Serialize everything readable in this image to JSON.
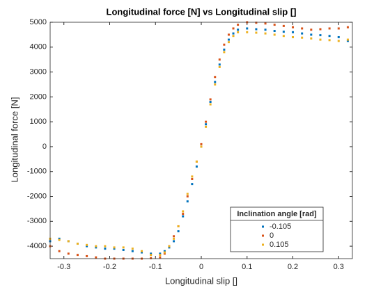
{
  "chart_data": {
    "type": "scatter",
    "title": "Longitudinal force [N] vs Longitudinal slip []",
    "x_label": "Longitudinal slip []",
    "y_label": "Longitudinal force [N]",
    "xlim": [
      -0.33,
      0.33
    ],
    "ylim": [
      -4500,
      5000
    ],
    "xticks": [
      -0.3,
      -0.2,
      -0.1,
      0,
      0.1,
      0.2,
      0.3
    ],
    "yticks": [
      -4000,
      -3000,
      -2000,
      -1000,
      0,
      1000,
      2000,
      3000,
      4000,
      5000
    ],
    "legend_title": "Inclination angle [rad]",
    "legend_position": "lower right",
    "series": [
      {
        "name": "-0.105",
        "color": "#0072bd",
        "x": [
          -0.33,
          -0.31,
          -0.29,
          -0.27,
          -0.25,
          -0.23,
          -0.21,
          -0.19,
          -0.17,
          -0.15,
          -0.13,
          -0.11,
          -0.09,
          -0.08,
          -0.07,
          -0.06,
          -0.05,
          -0.04,
          -0.03,
          -0.02,
          -0.01,
          0,
          0.01,
          0.02,
          0.03,
          0.04,
          0.05,
          0.06,
          0.07,
          0.08,
          0.1,
          0.12,
          0.14,
          0.16,
          0.18,
          0.2,
          0.22,
          0.24,
          0.26,
          0.28,
          0.3,
          0.32
        ],
        "values": [
          -3800,
          -3700,
          -3800,
          -3900,
          -4000,
          -4050,
          -4100,
          -4100,
          -4150,
          -4200,
          -4250,
          -4300,
          -4300,
          -4200,
          -4050,
          -3800,
          -3400,
          -2800,
          -2200,
          -1500,
          -800,
          0,
          900,
          1800,
          2600,
          3300,
          3900,
          4300,
          4550,
          4700,
          4750,
          4720,
          4700,
          4650,
          4620,
          4600,
          4550,
          4500,
          4480,
          4450,
          4400,
          4250
        ]
      },
      {
        "name": "0",
        "color": "#d95319",
        "x": [
          -0.33,
          -0.31,
          -0.29,
          -0.27,
          -0.25,
          -0.23,
          -0.21,
          -0.19,
          -0.17,
          -0.15,
          -0.13,
          -0.11,
          -0.09,
          -0.08,
          -0.07,
          -0.06,
          -0.05,
          -0.04,
          -0.03,
          -0.02,
          -0.01,
          0,
          0.01,
          0.02,
          0.03,
          0.04,
          0.05,
          0.06,
          0.07,
          0.08,
          0.1,
          0.12,
          0.14,
          0.16,
          0.18,
          0.2,
          0.22,
          0.24,
          0.26,
          0.28,
          0.3,
          0.32
        ],
        "values": [
          -4000,
          -4200,
          -4300,
          -4350,
          -4400,
          -4450,
          -4500,
          -4500,
          -4500,
          -4500,
          -4500,
          -4480,
          -4450,
          -4300,
          -4000,
          -3600,
          -3200,
          -2700,
          -2000,
          -1300,
          -600,
          100,
          1000,
          1900,
          2800,
          3500,
          4100,
          4500,
          4750,
          4900,
          5000,
          4980,
          4950,
          4900,
          4850,
          4800,
          4750,
          4700,
          4720,
          4750,
          4750,
          4800
        ]
      },
      {
        "name": "0.105",
        "color": "#edb120",
        "x": [
          -0.33,
          -0.31,
          -0.29,
          -0.27,
          -0.25,
          -0.23,
          -0.21,
          -0.19,
          -0.17,
          -0.15,
          -0.13,
          -0.11,
          -0.09,
          -0.08,
          -0.07,
          -0.06,
          -0.05,
          -0.04,
          -0.03,
          -0.02,
          -0.01,
          0,
          0.01,
          0.02,
          0.03,
          0.04,
          0.05,
          0.06,
          0.07,
          0.08,
          0.1,
          0.12,
          0.14,
          0.16,
          0.18,
          0.2,
          0.22,
          0.24,
          0.26,
          0.28,
          0.3,
          0.32
        ],
        "values": [
          -3700,
          -3750,
          -3800,
          -3900,
          -3950,
          -4000,
          -4000,
          -4050,
          -4050,
          -4100,
          -4200,
          -4350,
          -4350,
          -4250,
          -4000,
          -3700,
          -3200,
          -2600,
          -1900,
          -1200,
          -600,
          0,
          800,
          1700,
          2500,
          3200,
          3800,
          4200,
          4450,
          4600,
          4600,
          4580,
          4550,
          4500,
          4450,
          4400,
          4380,
          4350,
          4300,
          4280,
          4250,
          4300
        ]
      }
    ]
  }
}
